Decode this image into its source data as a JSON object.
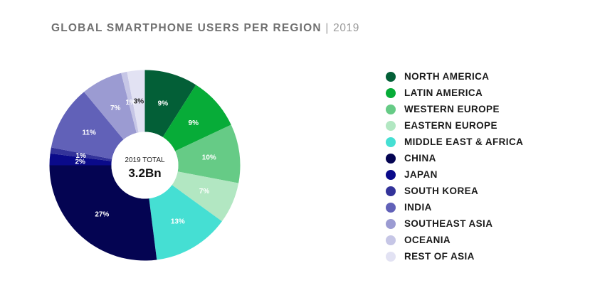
{
  "title": {
    "main": "GLOBAL SMARTPHONE USERS PER REGION",
    "separator": "|",
    "year": "2019"
  },
  "center": {
    "label": "2019 TOTAL",
    "value": "3.2Bn"
  },
  "chart_data": {
    "type": "pie",
    "title": "GLOBAL SMARTPHONE USERS PER REGION | 2019",
    "unit": "%",
    "legend_position": "right",
    "series": [
      {
        "name": "NORTH AMERICA",
        "value": 9,
        "label": "9%",
        "color": "#035f37",
        "label_color": "#ffffff"
      },
      {
        "name": "LATIN AMERICA",
        "value": 9,
        "label": "9%",
        "color": "#07ac38",
        "label_color": "#ffffff"
      },
      {
        "name": "WESTERN EUROPE",
        "value": 10,
        "label": "10%",
        "color": "#66cb86",
        "label_color": "#ffffff"
      },
      {
        "name": "EASTERN EUROPE",
        "value": 7,
        "label": "7%",
        "color": "#b2e7c2",
        "label_color": "#ffffff"
      },
      {
        "name": "MIDDLE EAST & AFRICA",
        "value": 13,
        "label": "13%",
        "color": "#45dfd3",
        "label_color": "#ffffff"
      },
      {
        "name": "CHINA",
        "value": 27,
        "label": "27%",
        "color": "#040452",
        "label_color": "#ffffff"
      },
      {
        "name": "JAPAN",
        "value": 2,
        "label": "2%",
        "color": "#0a0a8a",
        "label_color": "#ffffff"
      },
      {
        "name": "SOUTH KOREA",
        "value": 1,
        "label": "1%",
        "color": "#33339a",
        "label_color": "#ffffff"
      },
      {
        "name": "INDIA",
        "value": 11,
        "label": "11%",
        "color": "#6161b8",
        "label_color": "#ffffff"
      },
      {
        "name": "SOUTHEAST ASIA",
        "value": 7,
        "label": "7%",
        "color": "#9b9bd2",
        "label_color": "#ffffff"
      },
      {
        "name": "OCEANIA",
        "value": 1,
        "label": "1%",
        "color": "#c6c6e6",
        "label_color": "#ffffff"
      },
      {
        "name": "REST OF ASIA",
        "value": 3,
        "label": "3%",
        "color": "#e2e2f3",
        "label_color": "#1b1b1b"
      }
    ]
  }
}
